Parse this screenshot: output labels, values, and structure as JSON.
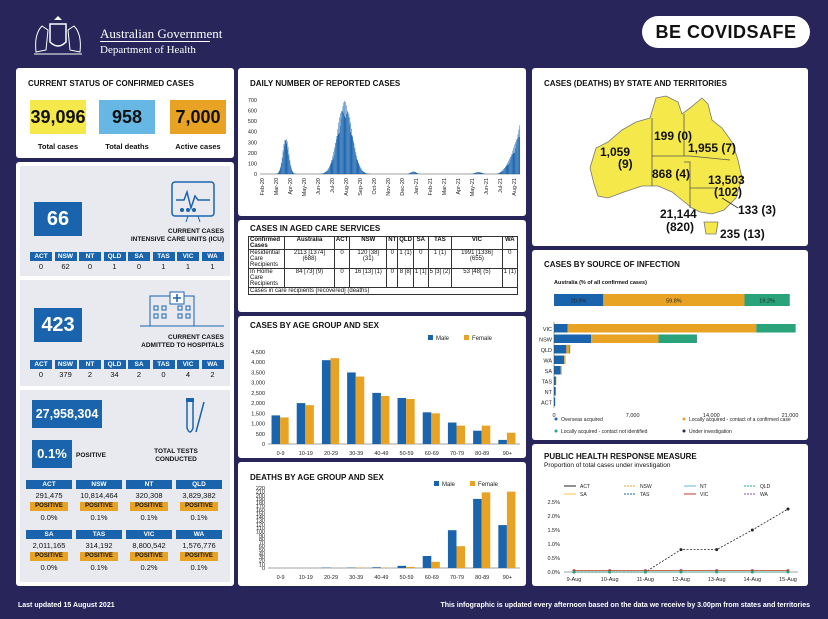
{
  "header": {
    "gov": "Australian Government",
    "dept": "Department of Health",
    "brand": "BE COVIDSAFE"
  },
  "footer": {
    "updated": "Last updated 15 August 2021",
    "note": "This infographic is updated every afternoon based on the data we receive by 3.00pm from states and territories"
  },
  "status": {
    "title": "CURRENT STATUS OF CONFIRMED CASES",
    "items": [
      {
        "value": "39,096",
        "label": "Total cases",
        "color": "#f4e84a"
      },
      {
        "value": "958",
        "label": "Total deaths",
        "color": "#66b7e3"
      },
      {
        "value": "7,000",
        "label": "Active cases",
        "color": "#e8a325"
      }
    ]
  },
  "icu": {
    "value": "66",
    "caption1": "CURRENT CASES",
    "caption2": "INTENSIVE CARE UNITS (ICU)",
    "states": [
      "ACT",
      "NSW",
      "NT",
      "QLD",
      "SA",
      "TAS",
      "VIC",
      "WA"
    ],
    "values": [
      "0",
      "62",
      "0",
      "1",
      "0",
      "1",
      "1",
      "1"
    ]
  },
  "hosp": {
    "value": "423",
    "caption1": "CURRENT CASES",
    "caption2": "ADMITTED TO HOSPITALS",
    "states": [
      "ACT",
      "NSW",
      "NT",
      "QLD",
      "SA",
      "TAS",
      "VIC",
      "WA"
    ],
    "values": [
      "0",
      "379",
      "2",
      "34",
      "2",
      "0",
      "4",
      "2"
    ]
  },
  "tests": {
    "value": "27,958,304",
    "positive": "0.1%",
    "positive_label": "POSITIVE",
    "caption1": "TOTAL TESTS",
    "caption2": "CONDUCTED",
    "pos_tag": "POSITIVE",
    "row1": [
      {
        "state": "ACT",
        "total": "291,475",
        "pct": "0.0%"
      },
      {
        "state": "NSW",
        "total": "10,814,464",
        "pct": "0.1%"
      },
      {
        "state": "NT",
        "total": "320,308",
        "pct": "0.1%"
      },
      {
        "state": "QLD",
        "total": "3,829,382",
        "pct": "0.1%"
      }
    ],
    "row2": [
      {
        "state": "SA",
        "total": "2,011,165",
        "pct": "0.0%"
      },
      {
        "state": "TAS",
        "total": "314,192",
        "pct": "0.1%"
      },
      {
        "state": "VIC",
        "total": "8,800,542",
        "pct": "0.2%"
      },
      {
        "state": "WA",
        "total": "1,576,776",
        "pct": "0.1%"
      }
    ]
  },
  "daily": {
    "title": "DAILY NUMBER OF REPORTED CASES",
    "months": [
      "Feb-20",
      "Apr-20",
      "Jun-20",
      "Aug-20",
      "Oct-20",
      "Dec-20",
      "Feb-21",
      "Apr-21",
      "Jun-21",
      "Aug-21",
      "Mar-20",
      "May-20",
      "Jul-20",
      "Sep-20",
      "Nov-20",
      "Jan-21",
      "Mar-21",
      "May-21",
      "Jul-21"
    ],
    "yticks": [
      "0",
      "100",
      "200",
      "300",
      "400",
      "500",
      "600",
      "700"
    ]
  },
  "aged": {
    "title": "CASES IN AGED CARE SERVICES",
    "headers": [
      "Confirmed Cases",
      "Australia",
      "ACT",
      "NSW",
      "NT",
      "QLD",
      "SA",
      "TAS",
      "VIC",
      "WA"
    ],
    "row1": [
      "Residential Care Recipients",
      "2113 [1374] (688)",
      "0",
      "120 [38] (31)",
      "0",
      "1 (1)",
      "0",
      "1 (1)",
      "1991 [1336] (655)",
      "0"
    ],
    "row2": [
      "In Home Care Recipients",
      "84 [73] (9)",
      "0",
      "16 [13] (1)",
      "0",
      "8 [8]",
      "1 [1]",
      "5 [3] (2)",
      "53 [48] (5)",
      "1 (1)"
    ],
    "note": "Cases in care recipients [recovered] (deaths)"
  },
  "age_cases": {
    "title": "CASES BY AGE GROUP AND SEX",
    "male": "Male",
    "female": "Female"
  },
  "age_deaths": {
    "title": "DEATHS BY AGE GROUP AND SEX",
    "male": "Male",
    "female": "Female"
  },
  "map": {
    "title": "CASES (DEATHS) BY STATE AND TERRITORIES",
    "labels": [
      {
        "t": "1,059",
        "t2": "(9)"
      },
      {
        "t": "199 (0)"
      },
      {
        "t": "1,955 (7)"
      },
      {
        "t": "868 (4)"
      },
      {
        "t": "13,503",
        "t2": "(102)"
      },
      {
        "t": "21,144",
        "t2": "(820)"
      },
      {
        "t": "133 (3)"
      },
      {
        "t": "235 (13)"
      }
    ]
  },
  "source": {
    "title": "CASES BY SOURCE OF INFECTION",
    "aus_label": "Australia (% of all confirmed cases)",
    "aus": [
      {
        "pct": "20.9%",
        "v": 20.9
      },
      {
        "pct": "59.8%",
        "v": 59.8
      },
      {
        "pct": "19.2%",
        "v": 19.2
      }
    ],
    "legend": [
      "Overseas acquired",
      "Locally acquired - contact of a confirmed case",
      "Locally acquired - contact not identified",
      "Under investigation"
    ],
    "xticks": [
      "0",
      "7,000",
      "14,000",
      "21,000"
    ]
  },
  "measure": {
    "title": "PUBLIC HEALTH RESPONSE MEASURE",
    "subtitle": "Proportion of total cases under investigation",
    "legend": [
      "ACT",
      "NSW",
      "NT",
      "QLD",
      "SA",
      "TAS",
      "VIC",
      "WA"
    ],
    "yticks": [
      "0.0%",
      "0.5%",
      "1.0%",
      "1.5%",
      "2.0%",
      "2.5%"
    ]
  },
  "colors": {
    "navy": "#27255a",
    "blue": "#1a64ad",
    "gold": "#e8a325",
    "green": "#2aa37a",
    "yellow": "#f4e84a",
    "lightblue": "#66b7e3"
  },
  "chart_data": [
    {
      "type": "bar",
      "title": "CASES BY AGE GROUP AND SEX",
      "categories": [
        "0-9",
        "10-19",
        "20-29",
        "30-39",
        "40-49",
        "50-59",
        "60-69",
        "70-79",
        "80-89",
        "90+"
      ],
      "series": [
        {
          "name": "Male",
          "values": [
            1400,
            2000,
            4100,
            3500,
            2500,
            2250,
            1550,
            1050,
            650,
            200
          ]
        },
        {
          "name": "Female",
          "values": [
            1300,
            1900,
            4200,
            3300,
            2350,
            2200,
            1500,
            900,
            900,
            550
          ]
        }
      ],
      "ylim": [
        0,
        4500
      ]
    },
    {
      "type": "bar",
      "title": "DEATHS BY AGE GROUP AND SEX",
      "categories": [
        "0-9",
        "10-19",
        "20-29",
        "30-39",
        "40-49",
        "50-59",
        "60-69",
        "70-79",
        "80-89",
        "90+"
      ],
      "series": [
        {
          "name": "Male",
          "values": [
            0,
            0,
            1,
            1,
            2,
            6,
            33,
            104,
            190,
            118
          ]
        },
        {
          "name": "Female",
          "values": [
            0,
            0,
            0,
            1,
            1,
            3,
            17,
            60,
            208,
            210
          ]
        }
      ],
      "ylim": [
        0,
        220
      ]
    },
    {
      "type": "bar",
      "title": "CASES BY SOURCE OF INFECTION",
      "categories": [
        "VIC",
        "NSW",
        "QLD",
        "WA",
        "SA",
        "TAS",
        "NT",
        "ACT"
      ],
      "series": [
        {
          "name": "Overseas acquired",
          "values": [
            1200,
            3300,
            1100,
            900,
            600,
            170,
            150,
            100
          ]
        },
        {
          "name": "Locally acquired - contact of a confirmed case",
          "values": [
            16800,
            6000,
            250,
            70,
            50,
            30,
            10,
            15
          ]
        },
        {
          "name": "Locally acquired - contact not identified",
          "values": [
            3500,
            3400,
            90,
            40,
            30,
            10,
            5,
            5
          ]
        },
        {
          "name": "Under investigation",
          "values": [
            0,
            20,
            0,
            0,
            0,
            0,
            0,
            0
          ]
        }
      ],
      "xlim": [
        0,
        21000
      ]
    },
    {
      "type": "line",
      "title": "PUBLIC HEALTH RESPONSE MEASURE",
      "categories": [
        "9-Aug",
        "10-Aug",
        "11-Aug",
        "12-Aug",
        "13-Aug",
        "14-Aug",
        "15-Aug"
      ],
      "series": [
        {
          "name": "NSW",
          "values": [
            0.0,
            0.0,
            0.0,
            0.8,
            0.8,
            1.5,
            2.25
          ]
        },
        {
          "name": "VIC",
          "values": [
            0.05,
            0.05,
            0.05,
            0.05,
            0.05,
            0.05,
            0.05
          ]
        },
        {
          "name": "QLD",
          "values": [
            0,
            0,
            0,
            0,
            0,
            0,
            0
          ]
        }
      ],
      "ylim": [
        0,
        2.5
      ]
    }
  ]
}
